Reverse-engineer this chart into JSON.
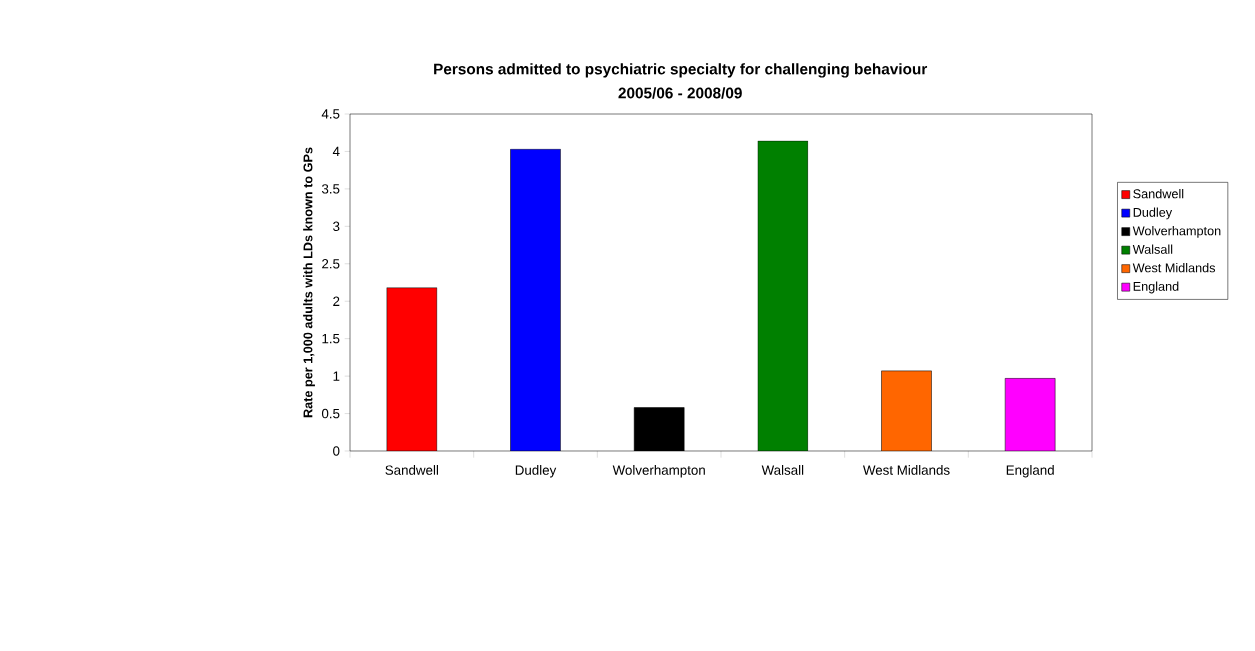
{
  "chart_data": {
    "type": "bar",
    "title": "Persons admitted to psychiatric specialty for challenging behaviour",
    "subtitle": "2005/06 - 2008/09",
    "ylabel": "Rate per 1,000 adults with LDs known to GPs",
    "categories": [
      "Sandwell",
      "Dudley",
      "Wolverhampton",
      "Walsall",
      "West Midlands",
      "England"
    ],
    "series": [
      {
        "name": "Sandwell",
        "color": "#ff0000",
        "values": [
          2.18,
          null,
          null,
          null,
          null,
          null
        ]
      },
      {
        "name": "Dudley",
        "color": "#0000ff",
        "values": [
          null,
          4.03,
          null,
          null,
          null,
          null
        ]
      },
      {
        "name": "Wolverhampton",
        "color": "#000000",
        "values": [
          null,
          null,
          0.58,
          null,
          null,
          null
        ]
      },
      {
        "name": "Walsall",
        "color": "#008000",
        "values": [
          null,
          null,
          null,
          4.14,
          null,
          null
        ]
      },
      {
        "name": "West Midlands",
        "color": "#ff6600",
        "values": [
          null,
          null,
          null,
          null,
          1.07,
          null
        ]
      },
      {
        "name": "England",
        "color": "#ff00ff",
        "values": [
          null,
          null,
          null,
          null,
          null,
          0.97
        ]
      }
    ],
    "ylim": [
      0,
      4.5
    ],
    "yticks": [
      0,
      0.5,
      1,
      1.5,
      2,
      2.5,
      3,
      3.5,
      4,
      4.5
    ],
    "legend": "right"
  }
}
